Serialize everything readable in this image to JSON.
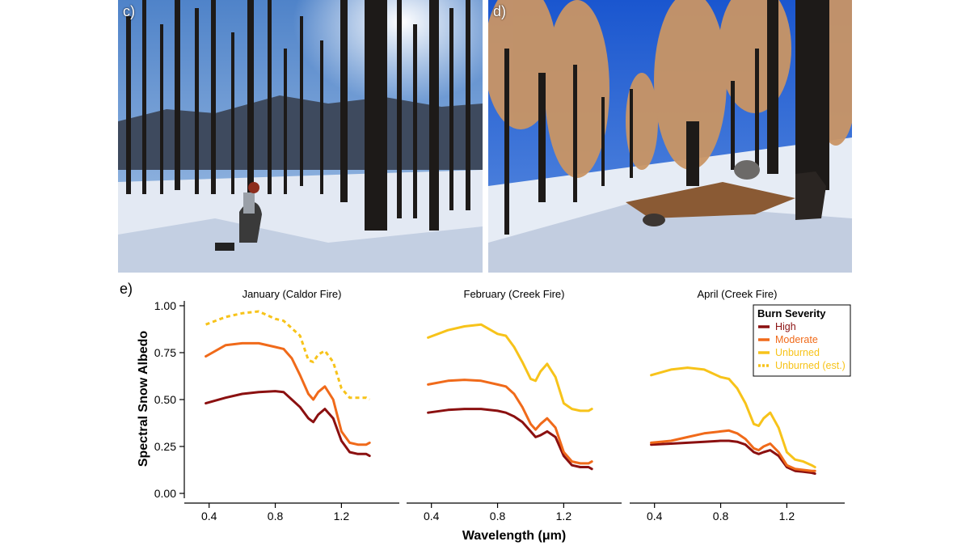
{
  "panels": {
    "photo_left": "c)",
    "photo_right": "d)",
    "chart": "e)"
  },
  "colors": {
    "high": "#8b1010",
    "moderate": "#f06a1a",
    "unburned": "#f7c31a",
    "unburned_est": "#f7c31a",
    "sky_left": "#6f9fd8",
    "sky_right": "#1d5fd6",
    "snow": "#e8edf5",
    "trunk": "#1d1a18",
    "needles": "#c99565"
  },
  "chart_data": {
    "type": "line",
    "ylabel": "Spectral Snow Albedo",
    "xlabel": "Wavelength (μm)",
    "ylim": [
      0,
      1
    ],
    "xlim": [
      0.25,
      1.55
    ],
    "yticks": [
      "0.00",
      "0.25",
      "0.50",
      "0.75",
      "1.00"
    ],
    "xticks": [
      "0.4",
      "0.8",
      "1.2"
    ],
    "legend": {
      "title": "Burn Severity",
      "placement": "top-right",
      "entries": [
        "High",
        "Moderate",
        "Unburned",
        "Unburned (est.)"
      ]
    },
    "subplots": [
      {
        "title": "January (Caldor Fire)",
        "series": [
          {
            "name": "High",
            "x": [
              0.38,
              0.5,
              0.6,
              0.7,
              0.8,
              0.85,
              0.9,
              0.95,
              1.0,
              1.03,
              1.06,
              1.1,
              1.15,
              1.2,
              1.25,
              1.3,
              1.35,
              1.37
            ],
            "values": [
              0.48,
              0.51,
              0.53,
              0.54,
              0.545,
              0.54,
              0.5,
              0.46,
              0.4,
              0.38,
              0.42,
              0.45,
              0.4,
              0.28,
              0.22,
              0.21,
              0.21,
              0.2
            ]
          },
          {
            "name": "Moderate",
            "x": [
              0.38,
              0.5,
              0.6,
              0.7,
              0.8,
              0.85,
              0.9,
              0.95,
              1.0,
              1.03,
              1.06,
              1.1,
              1.15,
              1.2,
              1.25,
              1.3,
              1.35,
              1.37
            ],
            "values": [
              0.73,
              0.79,
              0.8,
              0.8,
              0.78,
              0.77,
              0.72,
              0.63,
              0.53,
              0.5,
              0.54,
              0.57,
              0.5,
              0.33,
              0.27,
              0.26,
              0.26,
              0.27
            ]
          },
          {
            "name": "Unburned (est.)",
            "x": [
              0.38,
              0.5,
              0.6,
              0.7,
              0.8,
              0.85,
              0.9,
              0.95,
              1.0,
              1.03,
              1.06,
              1.1,
              1.15,
              1.2,
              1.25,
              1.3,
              1.35,
              1.37
            ],
            "values": [
              0.9,
              0.94,
              0.96,
              0.97,
              0.93,
              0.92,
              0.88,
              0.84,
              0.71,
              0.7,
              0.74,
              0.76,
              0.7,
              0.56,
              0.51,
              0.51,
              0.51,
              0.5
            ]
          }
        ]
      },
      {
        "title": "February (Creek Fire)",
        "series": [
          {
            "name": "High",
            "x": [
              0.38,
              0.5,
              0.6,
              0.7,
              0.8,
              0.85,
              0.9,
              0.95,
              1.0,
              1.03,
              1.06,
              1.1,
              1.15,
              1.2,
              1.25,
              1.3,
              1.35,
              1.37
            ],
            "values": [
              0.43,
              0.445,
              0.45,
              0.45,
              0.44,
              0.43,
              0.41,
              0.38,
              0.33,
              0.3,
              0.31,
              0.33,
              0.3,
              0.2,
              0.15,
              0.14,
              0.14,
              0.13
            ]
          },
          {
            "name": "Moderate",
            "x": [
              0.38,
              0.5,
              0.6,
              0.7,
              0.8,
              0.85,
              0.9,
              0.95,
              1.0,
              1.03,
              1.06,
              1.1,
              1.15,
              1.2,
              1.25,
              1.3,
              1.35,
              1.37
            ],
            "values": [
              0.58,
              0.6,
              0.605,
              0.6,
              0.58,
              0.57,
              0.53,
              0.46,
              0.37,
              0.34,
              0.37,
              0.4,
              0.35,
              0.22,
              0.17,
              0.16,
              0.16,
              0.17
            ]
          },
          {
            "name": "Unburned",
            "x": [
              0.38,
              0.5,
              0.6,
              0.7,
              0.8,
              0.85,
              0.9,
              0.95,
              1.0,
              1.03,
              1.06,
              1.1,
              1.15,
              1.2,
              1.25,
              1.3,
              1.35,
              1.37
            ],
            "values": [
              0.83,
              0.87,
              0.89,
              0.9,
              0.85,
              0.84,
              0.78,
              0.7,
              0.61,
              0.6,
              0.65,
              0.69,
              0.62,
              0.48,
              0.45,
              0.44,
              0.44,
              0.45
            ]
          }
        ]
      },
      {
        "title": "April (Creek Fire)",
        "series": [
          {
            "name": "High",
            "x": [
              0.38,
              0.5,
              0.6,
              0.7,
              0.8,
              0.85,
              0.9,
              0.95,
              1.0,
              1.03,
              1.06,
              1.1,
              1.15,
              1.2,
              1.25,
              1.3,
              1.35,
              1.37
            ],
            "values": [
              0.26,
              0.265,
              0.27,
              0.275,
              0.28,
              0.28,
              0.275,
              0.26,
              0.22,
              0.21,
              0.22,
              0.23,
              0.2,
              0.14,
              0.12,
              0.115,
              0.11,
              0.105
            ]
          },
          {
            "name": "Moderate",
            "x": [
              0.38,
              0.5,
              0.6,
              0.7,
              0.8,
              0.85,
              0.9,
              0.95,
              1.0,
              1.03,
              1.06,
              1.1,
              1.15,
              1.2,
              1.25,
              1.3,
              1.35,
              1.37
            ],
            "values": [
              0.27,
              0.28,
              0.3,
              0.32,
              0.33,
              0.335,
              0.32,
              0.29,
              0.24,
              0.23,
              0.25,
              0.265,
              0.22,
              0.15,
              0.13,
              0.125,
              0.12,
              0.12
            ]
          },
          {
            "name": "Unburned",
            "x": [
              0.38,
              0.5,
              0.6,
              0.7,
              0.8,
              0.85,
              0.9,
              0.95,
              1.0,
              1.03,
              1.06,
              1.1,
              1.15,
              1.2,
              1.25,
              1.3,
              1.35,
              1.37
            ],
            "values": [
              0.63,
              0.66,
              0.67,
              0.66,
              0.62,
              0.61,
              0.56,
              0.48,
              0.37,
              0.36,
              0.4,
              0.43,
              0.35,
              0.22,
              0.18,
              0.17,
              0.15,
              0.14
            ]
          }
        ]
      }
    ]
  }
}
